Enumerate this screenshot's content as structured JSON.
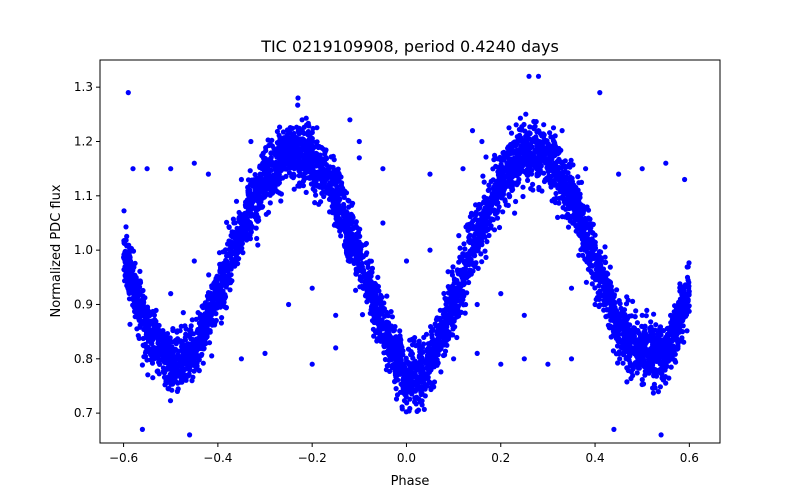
{
  "chart_data": {
    "type": "scatter",
    "title": "TIC 0219109908, period 0.4240 days",
    "xlabel": "Phase",
    "ylabel": "Normalized PDC flux",
    "xlim": [
      -0.65,
      0.665
    ],
    "ylim": [
      0.645,
      1.35
    ],
    "xticks": [
      -0.6,
      -0.4,
      -0.2,
      0.0,
      0.2,
      0.4,
      0.6
    ],
    "xtick_labels": [
      "−0.6",
      "−0.4",
      "−0.2",
      "0.0",
      "0.2",
      "0.4",
      "0.6"
    ],
    "yticks": [
      0.7,
      0.8,
      0.9,
      1.0,
      1.1,
      1.2,
      1.3
    ],
    "ytick_labels": [
      "0.7",
      "0.8",
      "0.9",
      "1.0",
      "1.1",
      "1.2",
      "1.3"
    ],
    "grid": false,
    "marker_color": "#0000ff",
    "series": [
      {
        "period_days": 0.424,
        "curve_shape": {
          "phase": [
            -0.6,
            -0.55,
            -0.5,
            -0.45,
            -0.4,
            -0.35,
            -0.3,
            -0.25,
            -0.2,
            -0.15,
            -0.1,
            -0.05,
            0.0,
            0.05,
            0.1,
            0.15,
            0.2,
            0.25,
            0.3,
            0.35,
            0.4,
            0.45,
            0.5,
            0.55,
            0.6
          ],
          "flux": [
            1.0,
            0.85,
            0.79,
            0.81,
            0.92,
            1.04,
            1.13,
            1.18,
            1.17,
            1.1,
            0.98,
            0.86,
            0.76,
            0.79,
            0.9,
            1.03,
            1.13,
            1.18,
            1.17,
            1.1,
            0.98,
            0.86,
            0.81,
            0.81,
            0.92
          ]
        },
        "band_halfwidth": 0.05,
        "outliers": [
          [
            -0.59,
            1.29
          ],
          [
            -0.56,
            0.67
          ],
          [
            -0.46,
            0.66
          ],
          [
            -0.23,
            1.28
          ],
          [
            0.26,
            1.32
          ],
          [
            0.28,
            1.32
          ],
          [
            0.41,
            1.29
          ],
          [
            0.44,
            0.67
          ],
          [
            0.54,
            0.66
          ],
          [
            -0.58,
            1.15
          ],
          [
            -0.55,
            1.15
          ],
          [
            -0.5,
            1.15
          ],
          [
            -0.45,
            1.16
          ],
          [
            -0.42,
            1.14
          ],
          [
            -0.35,
            1.13
          ],
          [
            -0.1,
            1.17
          ],
          [
            -0.05,
            1.15
          ],
          [
            0.05,
            1.14
          ],
          [
            0.12,
            1.15
          ],
          [
            0.38,
            1.15
          ],
          [
            0.45,
            1.14
          ],
          [
            0.5,
            1.15
          ],
          [
            0.55,
            1.16
          ],
          [
            0.59,
            1.13
          ],
          [
            -0.35,
            0.8
          ],
          [
            -0.3,
            0.81
          ],
          [
            -0.2,
            0.79
          ],
          [
            -0.15,
            0.82
          ],
          [
            0.1,
            0.8
          ],
          [
            0.15,
            0.81
          ],
          [
            0.2,
            0.79
          ],
          [
            0.25,
            0.8
          ],
          [
            0.3,
            0.79
          ],
          [
            0.35,
            0.8
          ],
          [
            -0.25,
            0.9
          ],
          [
            -0.2,
            0.93
          ],
          [
            -0.15,
            0.88
          ],
          [
            0.15,
            0.9
          ],
          [
            0.2,
            0.92
          ],
          [
            0.25,
            0.88
          ],
          [
            0.35,
            0.93
          ],
          [
            0.4,
            0.9
          ],
          [
            0.5,
            0.88
          ],
          [
            -0.5,
            0.92
          ],
          [
            -0.45,
            0.98
          ],
          [
            -0.05,
            1.05
          ],
          [
            0.05,
            1.0
          ],
          [
            0.0,
            0.98
          ],
          [
            -0.1,
            1.2
          ],
          [
            -0.12,
            1.24
          ],
          [
            0.14,
            1.22
          ],
          [
            0.16,
            1.2
          ],
          [
            -0.33,
            1.2
          ],
          [
            0.33,
            1.22
          ]
        ]
      }
    ]
  }
}
